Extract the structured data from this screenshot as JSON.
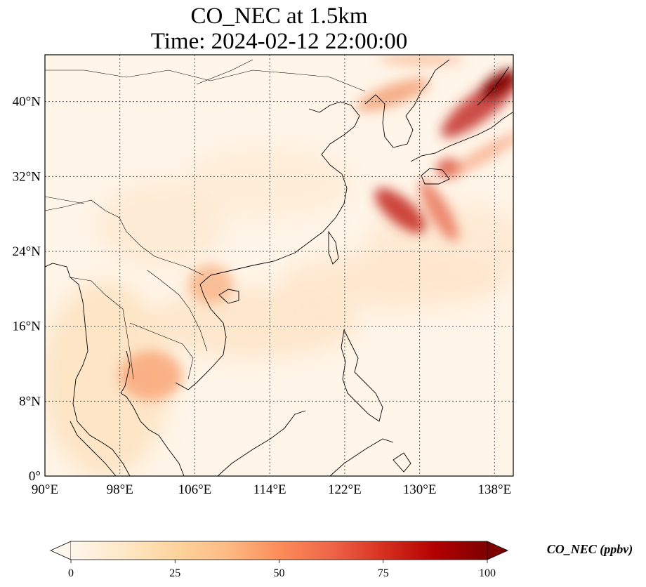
{
  "title": {
    "line1": "CO_NEC at 1.5km",
    "line2": "Time: 2024-02-12 22:00:00"
  },
  "map": {
    "extent": {
      "lon": [
        90,
        140
      ],
      "lat": [
        0,
        45
      ]
    },
    "lon_ticks": [
      90,
      98,
      106,
      114,
      122,
      130,
      138
    ],
    "lat_ticks": [
      0,
      8,
      16,
      24,
      32,
      40
    ],
    "lon_labels": [
      "90°E",
      "98°E",
      "106°E",
      "114°E",
      "122°E",
      "130°E",
      "138°E"
    ],
    "lat_labels": [
      "0°",
      "8°N",
      "16°N",
      "24°N",
      "32°N",
      "40°N"
    ],
    "gridlines": true,
    "gridline_style": "dotted",
    "colormap": "OrRd",
    "features": [
      {
        "name": "high-concentration-plume-northeast",
        "lon": [
          129,
          140
        ],
        "lat": [
          33,
          43.5
        ],
        "level": 100
      },
      {
        "name": "plume-east-china-sea",
        "lon": [
          125,
          133
        ],
        "lat": [
          26,
          31
        ],
        "level": 85
      },
      {
        "name": "plume-japan",
        "lon": [
          132,
          135
        ],
        "lat": [
          32,
          34
        ],
        "level": 65
      },
      {
        "name": "plume-yellow-sea-north",
        "lon": [
          122,
          129
        ],
        "lat": [
          39,
          42
        ],
        "level": 45
      },
      {
        "name": "plume-indochina",
        "lon": [
          99,
          106
        ],
        "lat": [
          8,
          14
        ],
        "level": 40
      },
      {
        "name": "plume-gulf-of-tonkin",
        "lon": [
          106,
          110
        ],
        "lat": [
          19,
          22
        ],
        "level": 40
      }
    ]
  },
  "colorbar": {
    "label": "CO_NEC (ppbv)",
    "min": 0,
    "max": 100,
    "ticks": [
      0,
      25,
      50,
      75,
      100
    ],
    "tick_labels": [
      "0",
      "25",
      "50",
      "75",
      "100"
    ],
    "extend": "both",
    "colors": [
      "#fff7ec",
      "#fee8c8",
      "#fdd49e",
      "#fdbb84",
      "#fc8d59",
      "#ef6548",
      "#d7301f",
      "#b30000",
      "#7f0000"
    ]
  }
}
